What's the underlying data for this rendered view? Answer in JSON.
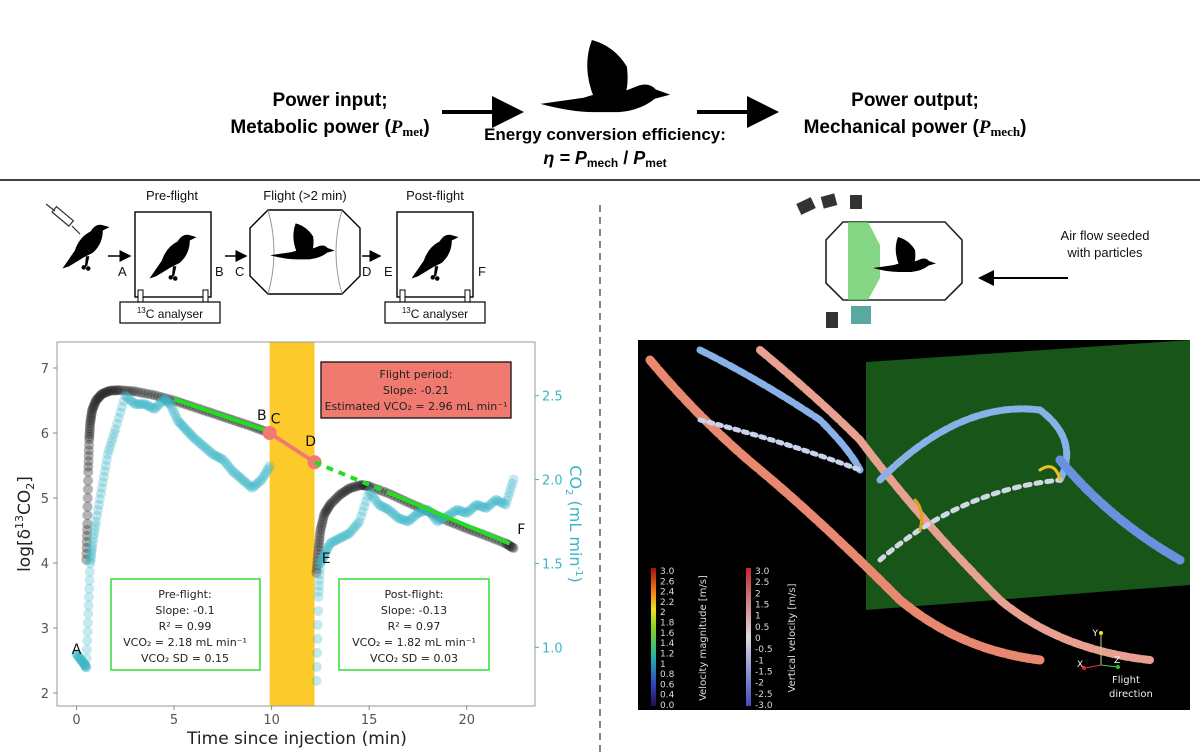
{
  "header": {
    "input_line1": "Power input;",
    "input_line2": "Metabolic power (",
    "input_symbol": "P",
    "input_sub": "met",
    "output_line1": "Power output;",
    "output_line2": "Mechanical power (",
    "output_symbol": "P",
    "output_sub": "mech",
    "close_paren": ")",
    "efficiency_label": "Energy conversion efficiency:",
    "efficiency_formula": "η = Pmech / Pmet",
    "eta": "η = ",
    "p": "P",
    "mech": "mech",
    "met": "met",
    "slash": " / "
  },
  "protocol": {
    "preflight_title": "Pre-flight",
    "flight_title": "Flight (>2 min)",
    "postflight_title": "Post-flight",
    "analyser_sup": "13",
    "analyser_label": "C analyser",
    "points": [
      "A",
      "B",
      "C",
      "D",
      "E",
      "F"
    ]
  },
  "piv_setup": {
    "airflow_line1": "Air flow seeded",
    "airflow_line2": "with particles"
  },
  "piv_panel": {
    "colorbar1_label": "Velocity magnitude [m/s]",
    "colorbar1_ticks": [
      "3.0",
      "2.6",
      "2.4",
      "2.2",
      "2",
      "1.8",
      "1.6",
      "1.4",
      "1.2",
      "1",
      "0.8",
      "0.6",
      "0.4",
      "0.0"
    ],
    "colorbar2_label": "Vertical velocity [m/s]",
    "colorbar2_ticks": [
      "3.0",
      "2.5",
      "2",
      "1.5",
      "1",
      "0.5",
      "0",
      "-0.5",
      "-1",
      "-1.5",
      "-2",
      "-2.5",
      "-3.0"
    ],
    "axis_x": "X",
    "axis_y": "Y",
    "axis_z": "Z",
    "direction_line1": "Flight",
    "direction_line2": "direction"
  },
  "chart_data": {
    "type": "scatter",
    "xlabel": "Time since injection (min)",
    "ylabel": "log[δ13CO2]",
    "ylabel_parts": {
      "pre": "log[δ",
      "sup": "13",
      "mid": "CO",
      "sub": "2",
      "post": "]"
    },
    "y2label": "CO2 (mL min-1)",
    "y2label_parts": {
      "pre": "CO",
      "sub": "2",
      "mid": " (mL min",
      "sup": "-1",
      "post": ")"
    },
    "xlim": [
      -1,
      23.5
    ],
    "ylim": [
      1.8,
      7.4
    ],
    "y2lim": [
      0.65,
      2.82
    ],
    "xticks": [
      "0",
      "5",
      "10",
      "15",
      "20"
    ],
    "yticks": [
      "2",
      "3",
      "4",
      "5",
      "6",
      "7"
    ],
    "y2ticks": [
      "1.0",
      "1.5",
      "2.0",
      "2.5"
    ],
    "grid": false,
    "flight_period": [
      9.9,
      12.2
    ],
    "colors": {
      "log_series": "#222222",
      "co2_series": "#3db5c8",
      "fit": "#22dd22",
      "flight_fit": "#f07a70",
      "flight_band": "#fcca2a"
    },
    "series": [
      {
        "axis": "left",
        "segments": [
          {
            "x": [
              0.5,
              0.55,
              0.6,
              0.65,
              0.7,
              0.8,
              1.0,
              1.3,
              1.7,
              2.2,
              3.0,
              4.0,
              5.0,
              6.0,
              7.0,
              8.0,
              9.0,
              9.9
            ],
            "y": [
              4.05,
              4.6,
              5.4,
              5.9,
              6.15,
              6.35,
              6.5,
              6.6,
              6.65,
              6.66,
              6.64,
              6.58,
              6.5,
              6.4,
              6.3,
              6.2,
              6.1,
              6.0
            ]
          },
          {
            "x": [
              12.3,
              12.4,
              12.5,
              12.7,
              13.0,
              13.5,
              14.0,
              14.6,
              15.0,
              16.0,
              17.0,
              18.0,
              19.0,
              20.0,
              21.0,
              22.0,
              22.4
            ],
            "y": [
              3.85,
              4.2,
              4.5,
              4.75,
              4.9,
              5.05,
              5.15,
              5.2,
              5.18,
              5.07,
              4.93,
              4.8,
              4.65,
              4.53,
              4.42,
              4.3,
              4.23
            ]
          }
        ]
      },
      {
        "axis": "right",
        "segments": [
          {
            "x": [
              0.0,
              0.2,
              0.4,
              0.5,
              0.6,
              0.7,
              0.8,
              1.0,
              1.3,
              1.6,
              2.0,
              2.5,
              3.0,
              3.5,
              4.0,
              4.5,
              4.8,
              5.2,
              5.6,
              6.0,
              6.5,
              7.0,
              7.5,
              8.0,
              8.5,
              9.0,
              9.5,
              9.9
            ],
            "y": [
              0.96,
              0.93,
              0.9,
              0.88,
              1.2,
              1.5,
              1.6,
              1.75,
              1.95,
              2.15,
              2.3,
              2.5,
              2.45,
              2.45,
              2.42,
              2.48,
              2.45,
              2.35,
              2.3,
              2.25,
              2.2,
              2.15,
              2.12,
              2.05,
              2.0,
              1.95,
              2.0,
              2.08
            ]
          },
          {
            "x": [
              12.3,
              12.4,
              12.5,
              12.7,
              13.0,
              13.5,
              14.0,
              14.5,
              15.0,
              15.5,
              16.0,
              16.5,
              17.0,
              17.5,
              18.0,
              18.5,
              19.0,
              19.5,
              20.0,
              20.5,
              21.0,
              21.5,
              22.0,
              22.4
            ],
            "y": [
              0.8,
              1.3,
              1.5,
              1.55,
              1.62,
              1.65,
              1.68,
              1.75,
              1.93,
              1.85,
              1.82,
              1.77,
              1.75,
              1.8,
              1.82,
              1.75,
              1.78,
              1.82,
              1.8,
              1.85,
              1.83,
              1.88,
              1.85,
              2.0
            ]
          }
        ]
      }
    ],
    "fits": [
      {
        "label": "pre-flight fit",
        "x": [
          5.0,
          9.9
        ],
        "y": [
          6.52,
          6.02
        ]
      },
      {
        "label": "flight",
        "x": [
          9.9,
          12.2
        ],
        "y": [
          6.0,
          5.55
        ]
      },
      {
        "label": "extrapolation",
        "x": [
          12.2,
          16.0
        ],
        "y": [
          5.55,
          5.08
        ],
        "dashed": true
      },
      {
        "label": "post-flight fit",
        "x": [
          16.0,
          22.2
        ],
        "y": [
          5.08,
          4.3
        ]
      }
    ],
    "point_labels": [
      {
        "text": "A",
        "x": 0.0,
        "y": 2.6
      },
      {
        "text": "B",
        "x": 9.5,
        "y": 6.2
      },
      {
        "text": "C",
        "x": 10.2,
        "y": 6.15
      },
      {
        "text": "D",
        "x": 12.0,
        "y": 5.8
      },
      {
        "text": "E",
        "x": 12.8,
        "y": 4.0
      },
      {
        "text": "F",
        "x": 22.8,
        "y": 4.45
      }
    ],
    "annotations": {
      "preflight": [
        "Pre-flight:",
        "Slope: -0.1",
        "R² = 0.99",
        "VCO₂ = 2.18 mL min⁻¹",
        "VCO₂ SD = 0.15"
      ],
      "flight": [
        "Flight period:",
        "Slope: -0.21",
        "Estimated VCO₂ = 2.96 mL min⁻¹"
      ],
      "postflight": [
        "Post-flight:",
        "Slope: -0.13",
        "R² = 0.97",
        "VCO₂ = 1.82 mL min⁻¹",
        "VCO₂ SD = 0.03"
      ]
    }
  }
}
